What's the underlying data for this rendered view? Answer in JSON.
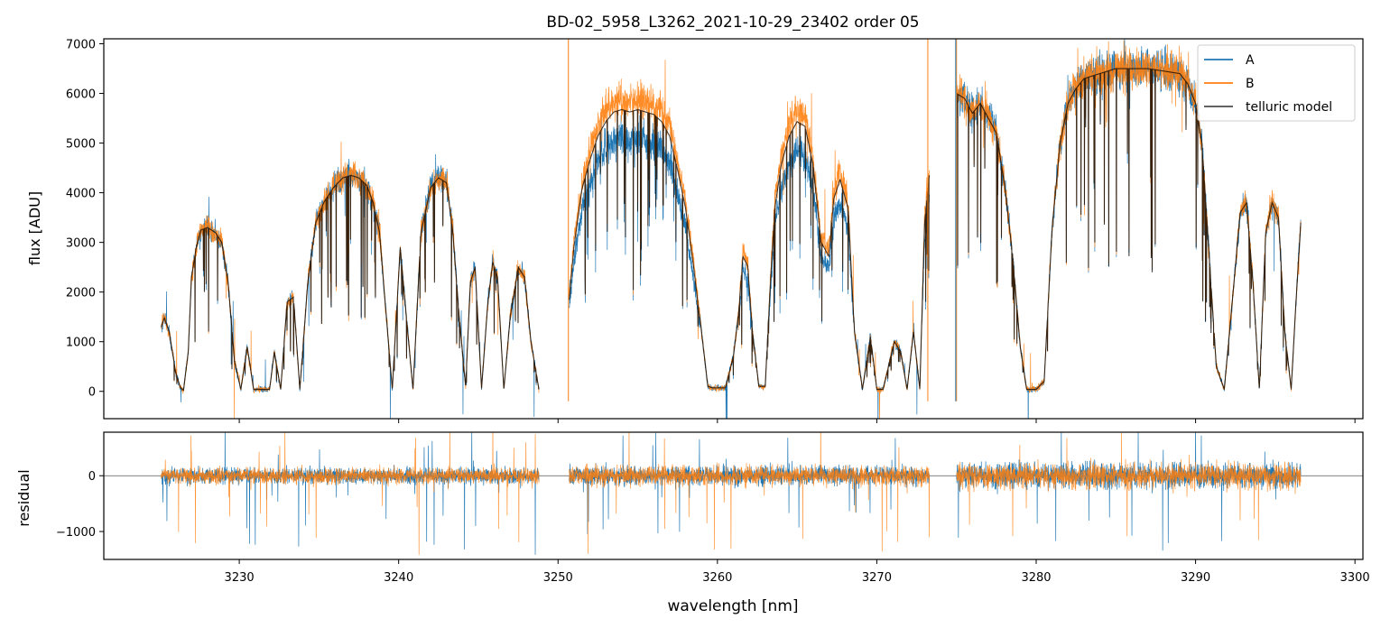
{
  "title": "BD-02_5958_L3262_2021-10-29_23402  order 05",
  "xlabel": "wavelength [nm]",
  "colors": {
    "A": "#1f77b4",
    "B": "#ff7f0e",
    "model": "#000000",
    "zero_line": "#555555"
  },
  "chart_data": [
    {
      "panel": "top",
      "type": "line",
      "ylabel": "flux [ADU]",
      "xlim": [
        3221.5,
        3300.5
      ],
      "ylim": [
        -550,
        7100
      ],
      "xticks": [
        3230,
        3240,
        3250,
        3260,
        3270,
        3280,
        3290,
        3300
      ],
      "xtick_labels_shown": false,
      "yticks": [
        0,
        1000,
        2000,
        3000,
        4000,
        5000,
        6000,
        7000
      ],
      "legend": {
        "placement": "top-right",
        "entries": [
          "A",
          "B",
          "telluric model"
        ]
      },
      "segments": [
        [
          3225.1,
          3248.8
        ],
        [
          3250.7,
          3273.3
        ],
        [
          3275.0,
          3296.6
        ]
      ],
      "model_envelope_x": [
        3225.1,
        3225.3,
        3225.6,
        3226.0,
        3226.3,
        3226.5,
        3226.8,
        3227.0,
        3227.3,
        3227.6,
        3228.0,
        3228.5,
        3228.9,
        3229.3,
        3229.7,
        3230.1,
        3230.5,
        3230.9,
        3231.2,
        3231.5,
        3231.9,
        3232.2,
        3232.6,
        3233.0,
        3233.4,
        3233.8,
        3234.3,
        3234.8,
        3235.3,
        3235.9,
        3236.5,
        3237.0,
        3237.5,
        3238.0,
        3238.4,
        3238.8,
        3239.1,
        3239.6,
        3240.1,
        3240.4,
        3240.9,
        3241.4,
        3242.0,
        3242.5,
        3243.0,
        3243.4,
        3243.8,
        3244.2,
        3244.5,
        3244.8,
        3245.2,
        3245.6,
        3245.9,
        3246.2,
        3246.6,
        3247.0,
        3247.5,
        3247.9,
        3248.3,
        3248.8,
        3250.7,
        3251.0,
        3251.5,
        3252.0,
        3252.5,
        3253.0,
        3253.5,
        3254.0,
        3254.5,
        3255.0,
        3255.5,
        3256.0,
        3256.5,
        3257.0,
        3257.5,
        3258.0,
        3258.5,
        3259.0,
        3259.4,
        3259.7,
        3260.0,
        3260.5,
        3261.0,
        3261.3,
        3261.6,
        3261.9,
        3262.2,
        3262.6,
        3263.0,
        3263.3,
        3263.6,
        3264.0,
        3264.5,
        3265.0,
        3265.5,
        3266.0,
        3266.5,
        3267.0,
        3267.3,
        3267.7,
        3268.2,
        3268.6,
        3269.1,
        3269.6,
        3270.0,
        3270.4,
        3270.8,
        3271.1,
        3271.5,
        3271.9,
        3272.3,
        3272.7,
        3273.0,
        3273.3,
        3275.0,
        3275.5,
        3276.0,
        3276.5,
        3277.0,
        3277.5,
        3278.0,
        3278.5,
        3279.0,
        3279.4,
        3279.7,
        3280.0,
        3280.5,
        3281.0,
        3281.5,
        3282.0,
        3282.5,
        3283.0,
        3284.0,
        3285.0,
        3286.0,
        3287.0,
        3288.0,
        3289.0,
        3289.5,
        3290.0,
        3290.4,
        3290.8,
        3291.3,
        3291.8,
        3292.3,
        3292.8,
        3293.2,
        3293.6,
        3294.0,
        3294.4,
        3294.8,
        3295.2,
        3295.6,
        3296.0,
        3296.3,
        3296.6
      ],
      "model_envelope_y": [
        1300,
        1480,
        1200,
        400,
        80,
        20,
        800,
        2300,
        2900,
        3250,
        3300,
        3200,
        3000,
        2200,
        600,
        40,
        900,
        40,
        40,
        40,
        40,
        800,
        40,
        1800,
        1900,
        40,
        2200,
        3400,
        3800,
        4100,
        4300,
        4350,
        4300,
        4150,
        3800,
        3200,
        2000,
        40,
        2900,
        1800,
        40,
        3200,
        4100,
        4300,
        4200,
        3200,
        1500,
        100,
        2200,
        2500,
        60,
        1800,
        2600,
        2300,
        40,
        1500,
        2500,
        2300,
        1000,
        40,
        1900,
        3000,
        4200,
        4800,
        5300,
        5600,
        5800,
        5850,
        5800,
        5850,
        5800,
        5750,
        5600,
        5300,
        4600,
        3800,
        2600,
        1200,
        100,
        70,
        70,
        70,
        700,
        1500,
        2800,
        2600,
        1200,
        100,
        100,
        2100,
        3800,
        4700,
        5300,
        5600,
        5500,
        4700,
        3100,
        2800,
        4000,
        4400,
        3800,
        1200,
        40,
        1100,
        40,
        40,
        600,
        1000,
        800,
        40,
        1200,
        40,
        3500,
        4500,
        6000,
        5900,
        5600,
        5800,
        5500,
        5200,
        4200,
        2800,
        900,
        40,
        40,
        40,
        200,
        3300,
        5000,
        5800,
        6100,
        6300,
        6400,
        6500,
        6500,
        6500,
        6450,
        6400,
        6200,
        5800,
        5000,
        3000,
        500,
        40,
        1800,
        3600,
        3800,
        2200,
        40,
        3200,
        3800,
        3500,
        1200,
        40,
        1800,
        3400
      ],
      "series": [
        {
          "name": "A"
        },
        {
          "name": "B"
        },
        {
          "name": "telluric model"
        }
      ]
    },
    {
      "panel": "bottom",
      "type": "line",
      "ylabel": "residual",
      "xlim": [
        3221.5,
        3300.5
      ],
      "ylim": [
        -1500,
        780
      ],
      "xticks": [
        3230,
        3240,
        3250,
        3260,
        3270,
        3280,
        3290,
        3300
      ],
      "xtick_labels": [
        "3230",
        "3240",
        "3250",
        "3260",
        "3270",
        "3280",
        "3290",
        "3300"
      ],
      "yticks": [
        0,
        -1000
      ],
      "ytick_labels": [
        "0",
        "−1000"
      ],
      "zero_line": 0,
      "typical_scatter": {
        "segment1": 250,
        "segment2": 300,
        "segment3": 400
      }
    }
  ]
}
